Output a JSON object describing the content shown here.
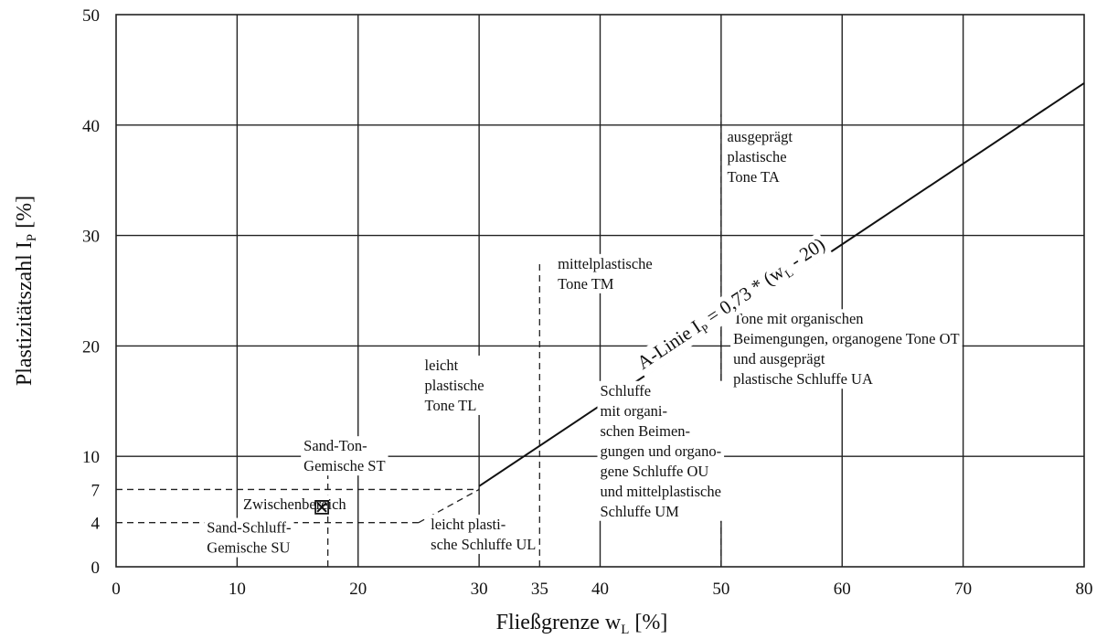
{
  "chart_data": {
    "type": "line",
    "title": "",
    "xlabel": "Fließgrenze w",
    "xlabel_sub": "L",
    "xlabel_unit": "[%]",
    "ylabel": "Plastizitätszahl I",
    "ylabel_sub": "P",
    "ylabel_unit": "[%]",
    "xlim": [
      0,
      80
    ],
    "ylim": [
      0,
      50
    ],
    "x_ticks": [
      0,
      10,
      20,
      30,
      35,
      40,
      50,
      60,
      70,
      80
    ],
    "y_ticks": [
      0,
      4,
      7,
      10,
      20,
      30,
      40,
      50
    ],
    "x_grid": [
      10,
      20,
      30,
      40,
      50,
      60,
      70
    ],
    "y_grid": [
      10,
      20,
      30,
      40
    ],
    "grid": true,
    "series": [
      {
        "label_parts": [
          "A-Linie I",
          "P",
          " = 0,73 * (w",
          "L",
          " - 20)"
        ],
        "x": [
          30,
          80
        ],
        "y": [
          7.3,
          43.8
        ]
      }
    ],
    "boundaries": [
      {
        "x": [
          0,
          30
        ],
        "y": [
          7,
          7
        ]
      },
      {
        "x": [
          0,
          25
        ],
        "y": [
          4,
          4
        ]
      },
      {
        "x": [
          25,
          30
        ],
        "y": [
          4,
          7
        ]
      },
      {
        "x": [
          35,
          35
        ],
        "y": [
          0,
          27.5
        ]
      },
      {
        "x": [
          50,
          50
        ],
        "y": [
          0,
          41
        ]
      },
      {
        "x": [
          17.5,
          17.5
        ],
        "y": [
          0,
          10
        ]
      }
    ],
    "marker": {
      "x": 17,
      "y": 5.5,
      "symbol": "⊠"
    },
    "regions": [
      {
        "lines": [
          "ausgeprägt",
          "plastische",
          "Tone TA"
        ],
        "x": 50.5,
        "y": 38.5
      },
      {
        "lines": [
          "mittelplastische",
          "Tone TM"
        ],
        "x": 36.5,
        "y": 27
      },
      {
        "lines": [
          "Tone mit organischen",
          "Beimengungen, organogene Tone OT",
          "und ausgeprägt",
          "plastische Schluffe UA"
        ],
        "x": 51,
        "y": 22
      },
      {
        "lines": [
          "leicht",
          "plastische",
          "Tone TL"
        ],
        "x": 25.5,
        "y": 17.8
      },
      {
        "lines": [
          "Schluffe",
          "mit organi-",
          "schen Beimen-",
          "gungen und organo-",
          "gene Schluffe OU",
          "und mittelplastische",
          "Schluffe UM"
        ],
        "x": 40,
        "y": 15.5
      },
      {
        "lines": [
          "Sand-Ton-",
          "Gemische ST"
        ],
        "x": 15.5,
        "y": 10.5
      },
      {
        "lines": [
          "Zwischenbereich"
        ],
        "x": 10.5,
        "y": 5.2
      },
      {
        "lines": [
          "Sand-Schluff-",
          "Gemische SU"
        ],
        "x": 7.5,
        "y": 3.1
      },
      {
        "lines": [
          "leicht plasti-",
          "sche Schluffe UL"
        ],
        "x": 26,
        "y": 3.4
      }
    ]
  }
}
